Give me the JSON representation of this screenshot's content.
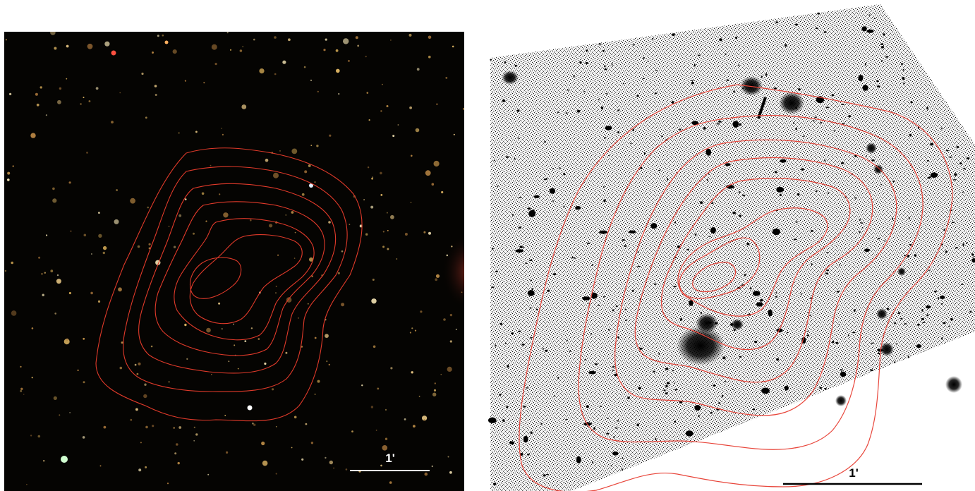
{
  "left_panel": {
    "scale_bar_label": "1'",
    "colors": {
      "background": "#050402",
      "contour": "#e03a2a",
      "scale_bar": "#ffffff"
    }
  },
  "right_panel": {
    "scale_bar_label": "1'",
    "colors": {
      "background": "#ffffff",
      "sky_noise": "#1a1a1a",
      "contour": "#e8453a",
      "scale_bar": "#000000"
    }
  }
}
